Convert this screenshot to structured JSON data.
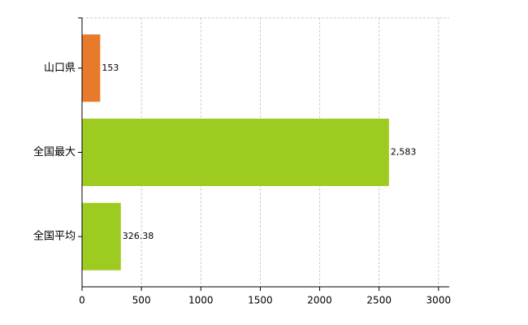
{
  "chart_data": {
    "type": "bar",
    "orientation": "horizontal",
    "categories": [
      "山口県",
      "全国最大",
      "全国平均"
    ],
    "values": [
      153,
      2583,
      326.38
    ],
    "value_labels": [
      "153",
      "2,583",
      "326.38"
    ],
    "colors": [
      "#e87b2b",
      "#9dcb1f",
      "#9dcb1f"
    ],
    "xlim": [
      0,
      3090
    ],
    "xticks": [
      0,
      500,
      1000,
      1500,
      2000,
      2500,
      3000
    ],
    "grid": true
  }
}
